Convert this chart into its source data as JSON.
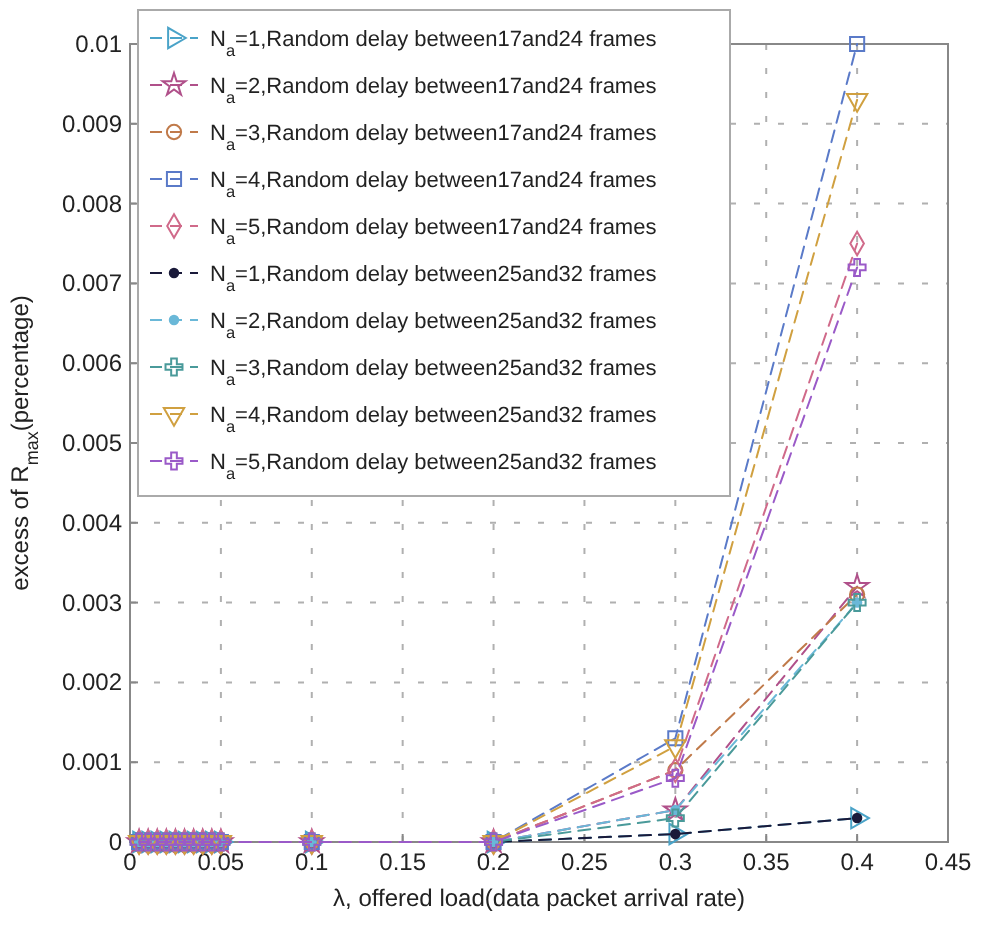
{
  "chart_data": {
    "type": "line",
    "xlabel": "λ, offered load(data packet arrival rate)",
    "ylabel": "excess of R$_{max}$(percentage)",
    "x": [
      0.005,
      0.01,
      0.015,
      0.02,
      0.025,
      0.03,
      0.035,
      0.04,
      0.045,
      0.05,
      0.1,
      0.2,
      0.3,
      0.4
    ],
    "xlim": [
      0,
      0.45
    ],
    "xticks": [
      0,
      0.05,
      0.1,
      0.15,
      0.2,
      0.25,
      0.3,
      0.35,
      0.4,
      0.45
    ],
    "ylim": [
      0,
      0.01
    ],
    "yticks": [
      0,
      0.001,
      0.002,
      0.003,
      0.004,
      0.005,
      0.006,
      0.007,
      0.008,
      0.009,
      0.01
    ],
    "grid": true,
    "legend": "top left",
    "line_style": "dashed",
    "series": [
      {
        "name": "N$_{a}$=1,Random delay between17and24 frames",
        "color": "#4aa3c8",
        "marker": "triangle-right",
        "values": [
          0,
          0,
          0,
          0,
          0,
          0,
          0,
          0,
          0,
          0,
          0,
          0,
          0.0001,
          0.0003
        ]
      },
      {
        "name": "N$_{a}$=2,Random delay between17and24 frames",
        "color": "#b0508a",
        "marker": "star",
        "values": [
          0,
          0,
          0,
          0,
          0,
          0,
          0,
          0,
          0,
          0,
          0,
          0,
          0.0004,
          0.0032
        ]
      },
      {
        "name": "N$_{a}$=3,Random delay between17and24 frames",
        "color": "#c07a4a",
        "marker": "circle",
        "values": [
          0,
          0,
          0,
          0,
          0,
          0,
          0,
          0,
          0,
          0,
          0,
          0,
          0.0009,
          0.0031
        ]
      },
      {
        "name": "N$_{a}$=4,Random delay between17and24 frames",
        "color": "#5a7ac8",
        "marker": "square",
        "values": [
          0,
          0,
          0,
          0,
          0,
          0,
          0,
          0,
          0,
          0,
          0,
          0,
          0.0013,
          0.01
        ]
      },
      {
        "name": "N$_{a}$=5,Random delay between17and24 frames",
        "color": "#d06a8a",
        "marker": "diamond",
        "values": [
          0,
          0,
          0,
          0,
          0,
          0,
          0,
          0,
          0,
          0,
          0,
          0,
          0.0009,
          0.0075
        ]
      },
      {
        "name": "N$_{a}$=1,Random delay between25and32 frames",
        "color": "#1a1a3a",
        "marker": "point",
        "values": [
          0,
          0,
          0,
          0,
          0,
          0,
          0,
          0,
          0,
          0,
          0,
          0,
          0.0001,
          0.0003
        ]
      },
      {
        "name": "N$_{a}$=2,Random delay between25and32 frames",
        "color": "#6ab8d8",
        "marker": "point",
        "values": [
          0,
          0,
          0,
          0,
          0,
          0,
          0,
          0,
          0,
          0,
          0,
          0,
          0.0004,
          0.003
        ]
      },
      {
        "name": "N$_{a}$=3,Random delay between25and32 frames",
        "color": "#4a9a9a",
        "marker": "cross",
        "values": [
          0,
          0,
          0,
          0,
          0,
          0,
          0,
          0,
          0,
          0,
          0,
          0,
          0.0003,
          0.003
        ]
      },
      {
        "name": "N$_{a}$=4,Random delay between25and32 frames",
        "color": "#d0a040",
        "marker": "triangle-down",
        "values": [
          0,
          0,
          0,
          0,
          0,
          0,
          0,
          0,
          0,
          0,
          0,
          0,
          0.0012,
          0.0093
        ]
      },
      {
        "name": "N$_{a}$=5,Random delay between25and32 frames",
        "color": "#9a5ac8",
        "marker": "cross",
        "values": [
          0,
          0,
          0,
          0,
          0,
          0,
          0,
          0,
          0,
          0,
          0,
          0,
          0.0008,
          0.0072
        ]
      }
    ]
  }
}
